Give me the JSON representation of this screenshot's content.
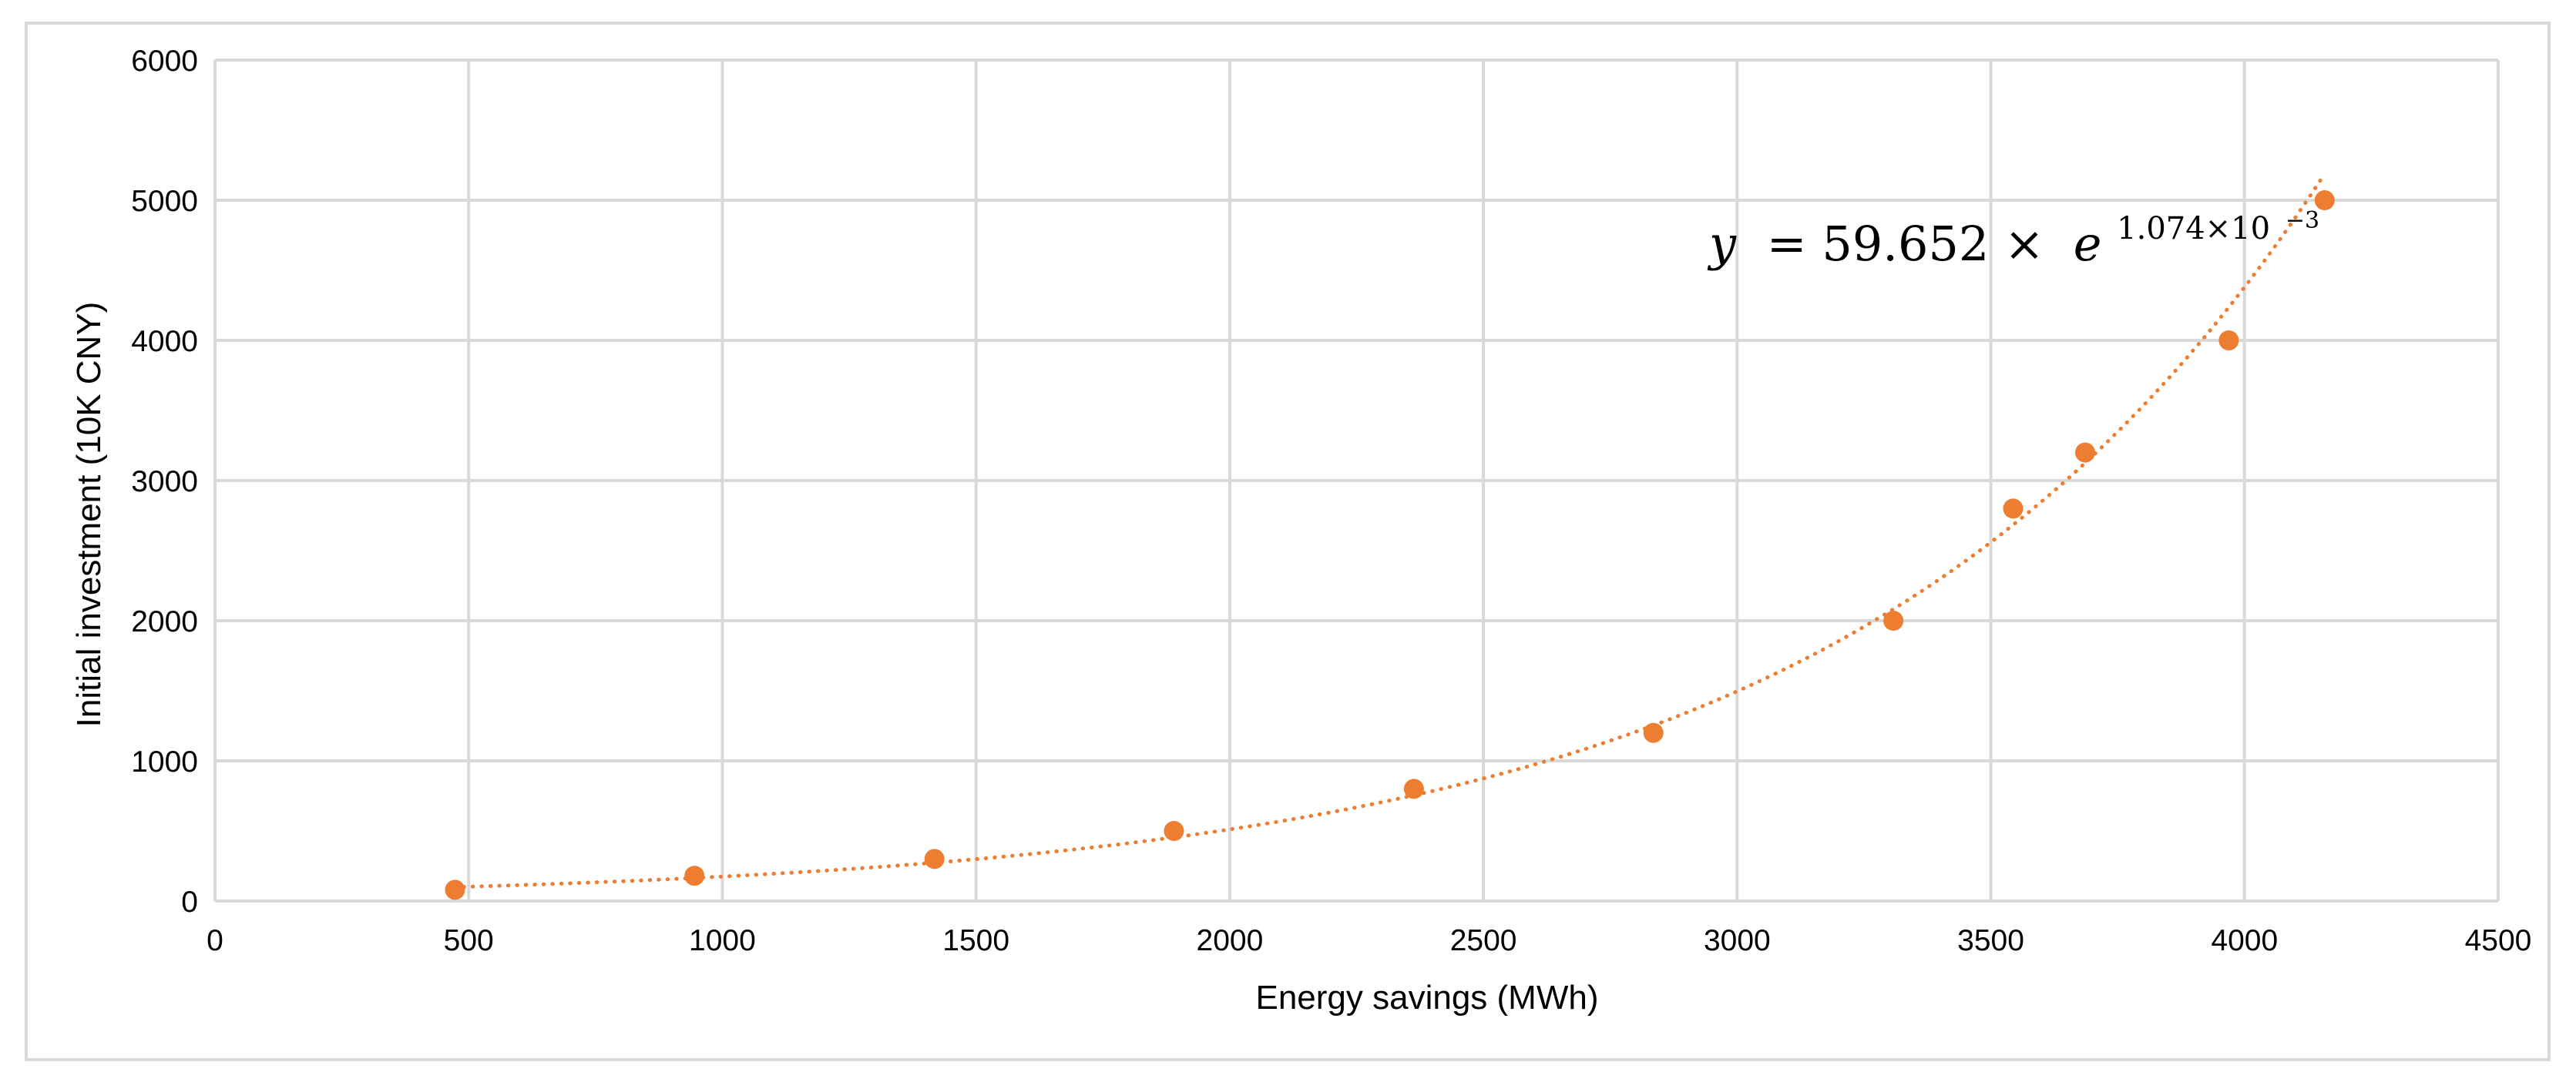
{
  "chart_data": {
    "type": "scatter",
    "title": "",
    "xlabel": "Energy savings (MWh)",
    "ylabel": "Initial investment (10K CNY)",
    "xlim": [
      0,
      4500
    ],
    "ylim": [
      0,
      6000
    ],
    "xticks": [
      0,
      500,
      1000,
      1500,
      2000,
      2500,
      3000,
      3500,
      4000,
      4500
    ],
    "yticks": [
      0,
      1000,
      2000,
      3000,
      4000,
      5000,
      6000
    ],
    "grid": true,
    "series": [
      {
        "name": "Initial investment",
        "color": "#ED7D31",
        "x": [
          473,
          945,
          1418,
          1890,
          2363,
          2835,
          3308,
          3544,
          3686,
          3969,
          4158
        ],
        "y": [
          80,
          180,
          300,
          500,
          800,
          1200,
          2000,
          2800,
          3200,
          4000,
          5000
        ]
      }
    ],
    "trendline": {
      "type": "exponential",
      "a": 59.652,
      "b": 0.001074,
      "x_range": [
        473,
        4158
      ],
      "color": "#ED7D31",
      "style": "dotted"
    },
    "annotation": {
      "lhs": "y",
      "rhs_coeff": "= 59.652 ×",
      "base": "e",
      "exponent": "1.074×10",
      "exponent_power": "−3"
    }
  }
}
